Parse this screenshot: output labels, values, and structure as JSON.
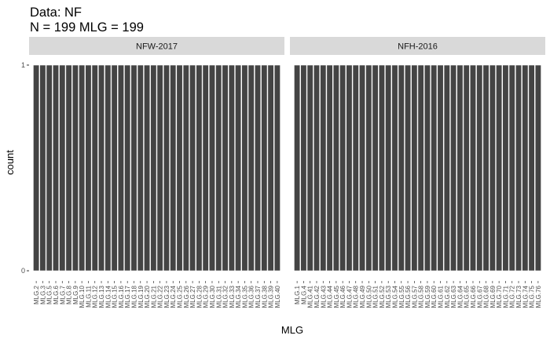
{
  "chart_data": {
    "type": "bar",
    "title": "Data: NF",
    "subtitle": "N = 199 MLG = 199",
    "xlabel": "MLG",
    "ylabel": "count",
    "ylim": [
      0,
      1
    ],
    "yticks": [
      0,
      1
    ],
    "grid": false,
    "colors": {
      "bar": "#444444",
      "bar_outline": "#ffffff",
      "strip": "#d9d9d9"
    },
    "panels": [
      {
        "name": "NFW-2017",
        "categories": [
          "MLG.2",
          "MLG.3",
          "MLG.5",
          "MLG.6",
          "MLG.7",
          "MLG.8",
          "MLG.9",
          "MLG.10",
          "MLG.11",
          "MLG.12",
          "MLG.13",
          "MLG.14",
          "MLG.15",
          "MLG.16",
          "MLG.17",
          "MLG.18",
          "MLG.19",
          "MLG.20",
          "MLG.21",
          "MLG.22",
          "MLG.23",
          "MLG.24",
          "MLG.25",
          "MLG.26",
          "MLG.27",
          "MLG.28",
          "MLG.29",
          "MLG.30",
          "MLG.31",
          "MLG.32",
          "MLG.33",
          "MLG.34",
          "MLG.35",
          "MLG.36",
          "MLG.37",
          "MLG.38",
          "MLG.39",
          "MLG.40"
        ],
        "values": [
          1,
          1,
          1,
          1,
          1,
          1,
          1,
          1,
          1,
          1,
          1,
          1,
          1,
          1,
          1,
          1,
          1,
          1,
          1,
          1,
          1,
          1,
          1,
          1,
          1,
          1,
          1,
          1,
          1,
          1,
          1,
          1,
          1,
          1,
          1,
          1,
          1,
          1
        ]
      },
      {
        "name": "NFH-2016",
        "categories": [
          "MLG.1",
          "MLG.4",
          "MLG.41",
          "MLG.42",
          "MLG.43",
          "MLG.44",
          "MLG.45",
          "MLG.46",
          "MLG.47",
          "MLG.48",
          "MLG.49",
          "MLG.50",
          "MLG.51",
          "MLG.52",
          "MLG.53",
          "MLG.54",
          "MLG.55",
          "MLG.56",
          "MLG.57",
          "MLG.58",
          "MLG.59",
          "MLG.60",
          "MLG.61",
          "MLG.62",
          "MLG.63",
          "MLG.64",
          "MLG.65",
          "MLG.66",
          "MLG.67",
          "MLG.68",
          "MLG.69",
          "MLG.70",
          "MLG.71",
          "MLG.72",
          "MLG.73",
          "MLG.74",
          "MLG.75",
          "MLG.76"
        ],
        "values": [
          1,
          1,
          1,
          1,
          1,
          1,
          1,
          1,
          1,
          1,
          1,
          1,
          1,
          1,
          1,
          1,
          1,
          1,
          1,
          1,
          1,
          1,
          1,
          1,
          1,
          1,
          1,
          1,
          1,
          1,
          1,
          1,
          1,
          1,
          1,
          1,
          1,
          1
        ]
      }
    ]
  }
}
